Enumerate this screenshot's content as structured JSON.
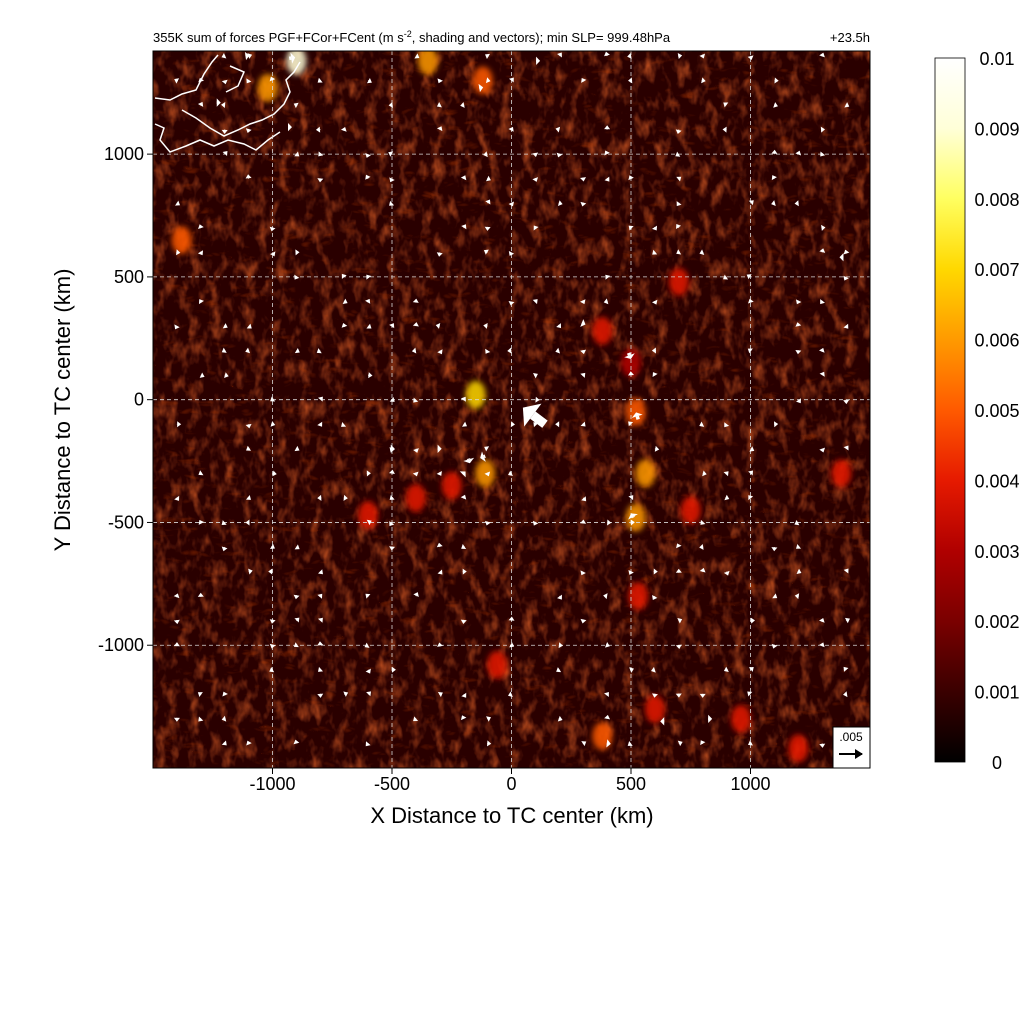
{
  "chart_data": {
    "type": "heatmap",
    "title": "355K sum of forces PGF+FCor+FCent (m s",
    "title_sup": "-2",
    "title_rest": ", shading and vectors); min SLP= 999.48hPa",
    "time_label": "+23.5h",
    "xlabel": "X Distance to TC center (km)",
    "ylabel": "Y Distance to TC center (km)",
    "xlim": [
      -1500,
      1500
    ],
    "ylim": [
      -1500,
      1420
    ],
    "xticks": [
      -1000,
      -500,
      0,
      500,
      1000
    ],
    "yticks": [
      -1000,
      -500,
      0,
      500,
      1000
    ],
    "xtick_labels": [
      "-1000",
      "-500",
      "0",
      "500",
      "1000"
    ],
    "ytick_labels": [
      "-1000",
      "-500",
      "0",
      "500",
      "1000"
    ],
    "grid": true,
    "colorbar": {
      "min": 0,
      "max": 0.01,
      "ticks": [
        0,
        0.001,
        0.002,
        0.003,
        0.004,
        0.005,
        0.006,
        0.007,
        0.008,
        0.009,
        0.01
      ],
      "tick_labels": [
        "0",
        "0.001",
        "0.002",
        "0.003",
        "0.004",
        "0.005",
        "0.006",
        "0.007",
        "0.008",
        "0.009",
        "0.01"
      ],
      "colormap": [
        "#000000",
        "#3a0000",
        "#7a0000",
        "#b00000",
        "#e61a00",
        "#ff5a00",
        "#ff9a00",
        "#ffd800",
        "#ffff60",
        "#ffffd8",
        "#ffffff"
      ]
    },
    "reference_vector": {
      "label": ".005",
      "value": 0.005
    },
    "hotspots": [
      {
        "x": -900,
        "y": 1380,
        "v": 0.009
      },
      {
        "x": -1020,
        "y": 1270,
        "v": 0.006
      },
      {
        "x": -350,
        "y": 1380,
        "v": 0.006
      },
      {
        "x": -120,
        "y": 1300,
        "v": 0.005
      },
      {
        "x": -1380,
        "y": 650,
        "v": 0.005
      },
      {
        "x": -150,
        "y": 20,
        "v": 0.007
      },
      {
        "x": -110,
        "y": -300,
        "v": 0.006
      },
      {
        "x": -250,
        "y": -350,
        "v": 0.004
      },
      {
        "x": -400,
        "y": -400,
        "v": 0.004
      },
      {
        "x": -600,
        "y": -470,
        "v": 0.004
      },
      {
        "x": 380,
        "y": 280,
        "v": 0.004
      },
      {
        "x": 500,
        "y": 150,
        "v": 0.003
      },
      {
        "x": 520,
        "y": -50,
        "v": 0.005
      },
      {
        "x": 560,
        "y": -300,
        "v": 0.006
      },
      {
        "x": 520,
        "y": -480,
        "v": 0.006
      },
      {
        "x": 750,
        "y": -450,
        "v": 0.004
      },
      {
        "x": 530,
        "y": -800,
        "v": 0.004
      },
      {
        "x": 700,
        "y": 480,
        "v": 0.004
      },
      {
        "x": 1380,
        "y": -300,
        "v": 0.004
      },
      {
        "x": -60,
        "y": -1080,
        "v": 0.004
      },
      {
        "x": 380,
        "y": -1370,
        "v": 0.005
      },
      {
        "x": 600,
        "y": -1260,
        "v": 0.004
      },
      {
        "x": 960,
        "y": -1300,
        "v": 0.004
      },
      {
        "x": 1200,
        "y": -1420,
        "v": 0.004
      }
    ],
    "large_vectors": [
      {
        "x": 140,
        "y": -100,
        "u": -0.0048,
        "v": 0.0036
      },
      {
        "x": 490,
        "y": 190,
        "u": 0.0005,
        "v": -0.0013
      },
      {
        "x": 530,
        "y": -80,
        "u": -0.00045,
        "v": 0.0015
      },
      {
        "x": 510,
        "y": -480,
        "u": -0.0005,
        "v": 0.0009
      },
      {
        "x": -180,
        "y": -240,
        "u": 0.0003,
        "v": -0.001
      },
      {
        "x": -110,
        "y": -230,
        "u": -0.0011,
        "v": -0.0004
      },
      {
        "x": -200,
        "y": -300,
        "u": 0.0004,
        "v": 0.0004
      },
      {
        "x": -930,
        "y": 1390,
        "u": 0.0013,
        "v": 0.0002
      },
      {
        "x": -1110,
        "y": 1400,
        "u": 0.0007,
        "v": 0.0001
      },
      {
        "x": -1230,
        "y": 1210,
        "u": 0.0007,
        "v": 0.0
      },
      {
        "x": -930,
        "y": 1110,
        "u": 0.0006,
        "v": 0.0
      },
      {
        "x": -130,
        "y": 1270,
        "u": 0.0006,
        "v": 0.0001
      },
      {
        "x": 110,
        "y": 1380,
        "u": 0.0005,
        "v": 0.0
      },
      {
        "x": -500,
        "y": -200,
        "u": 0.0006,
        "v": 0.0
      },
      {
        "x": -300,
        "y": -200,
        "u": 0.0004,
        "v": 0.0
      },
      {
        "x": 400,
        "y": -1400,
        "u": 0.0008,
        "v": -0.0001
      },
      {
        "x": 300,
        "y": 310,
        "u": 0.0005,
        "v": -0.0002
      },
      {
        "x": 830,
        "y": -1300,
        "u": 0.0005,
        "v": 0.0
      },
      {
        "x": 630,
        "y": -1310,
        "u": -0.0004,
        "v": 0.0
      },
      {
        "x": 1380,
        "y": 580,
        "u": -0.0004,
        "v": 0.0
      }
    ]
  }
}
